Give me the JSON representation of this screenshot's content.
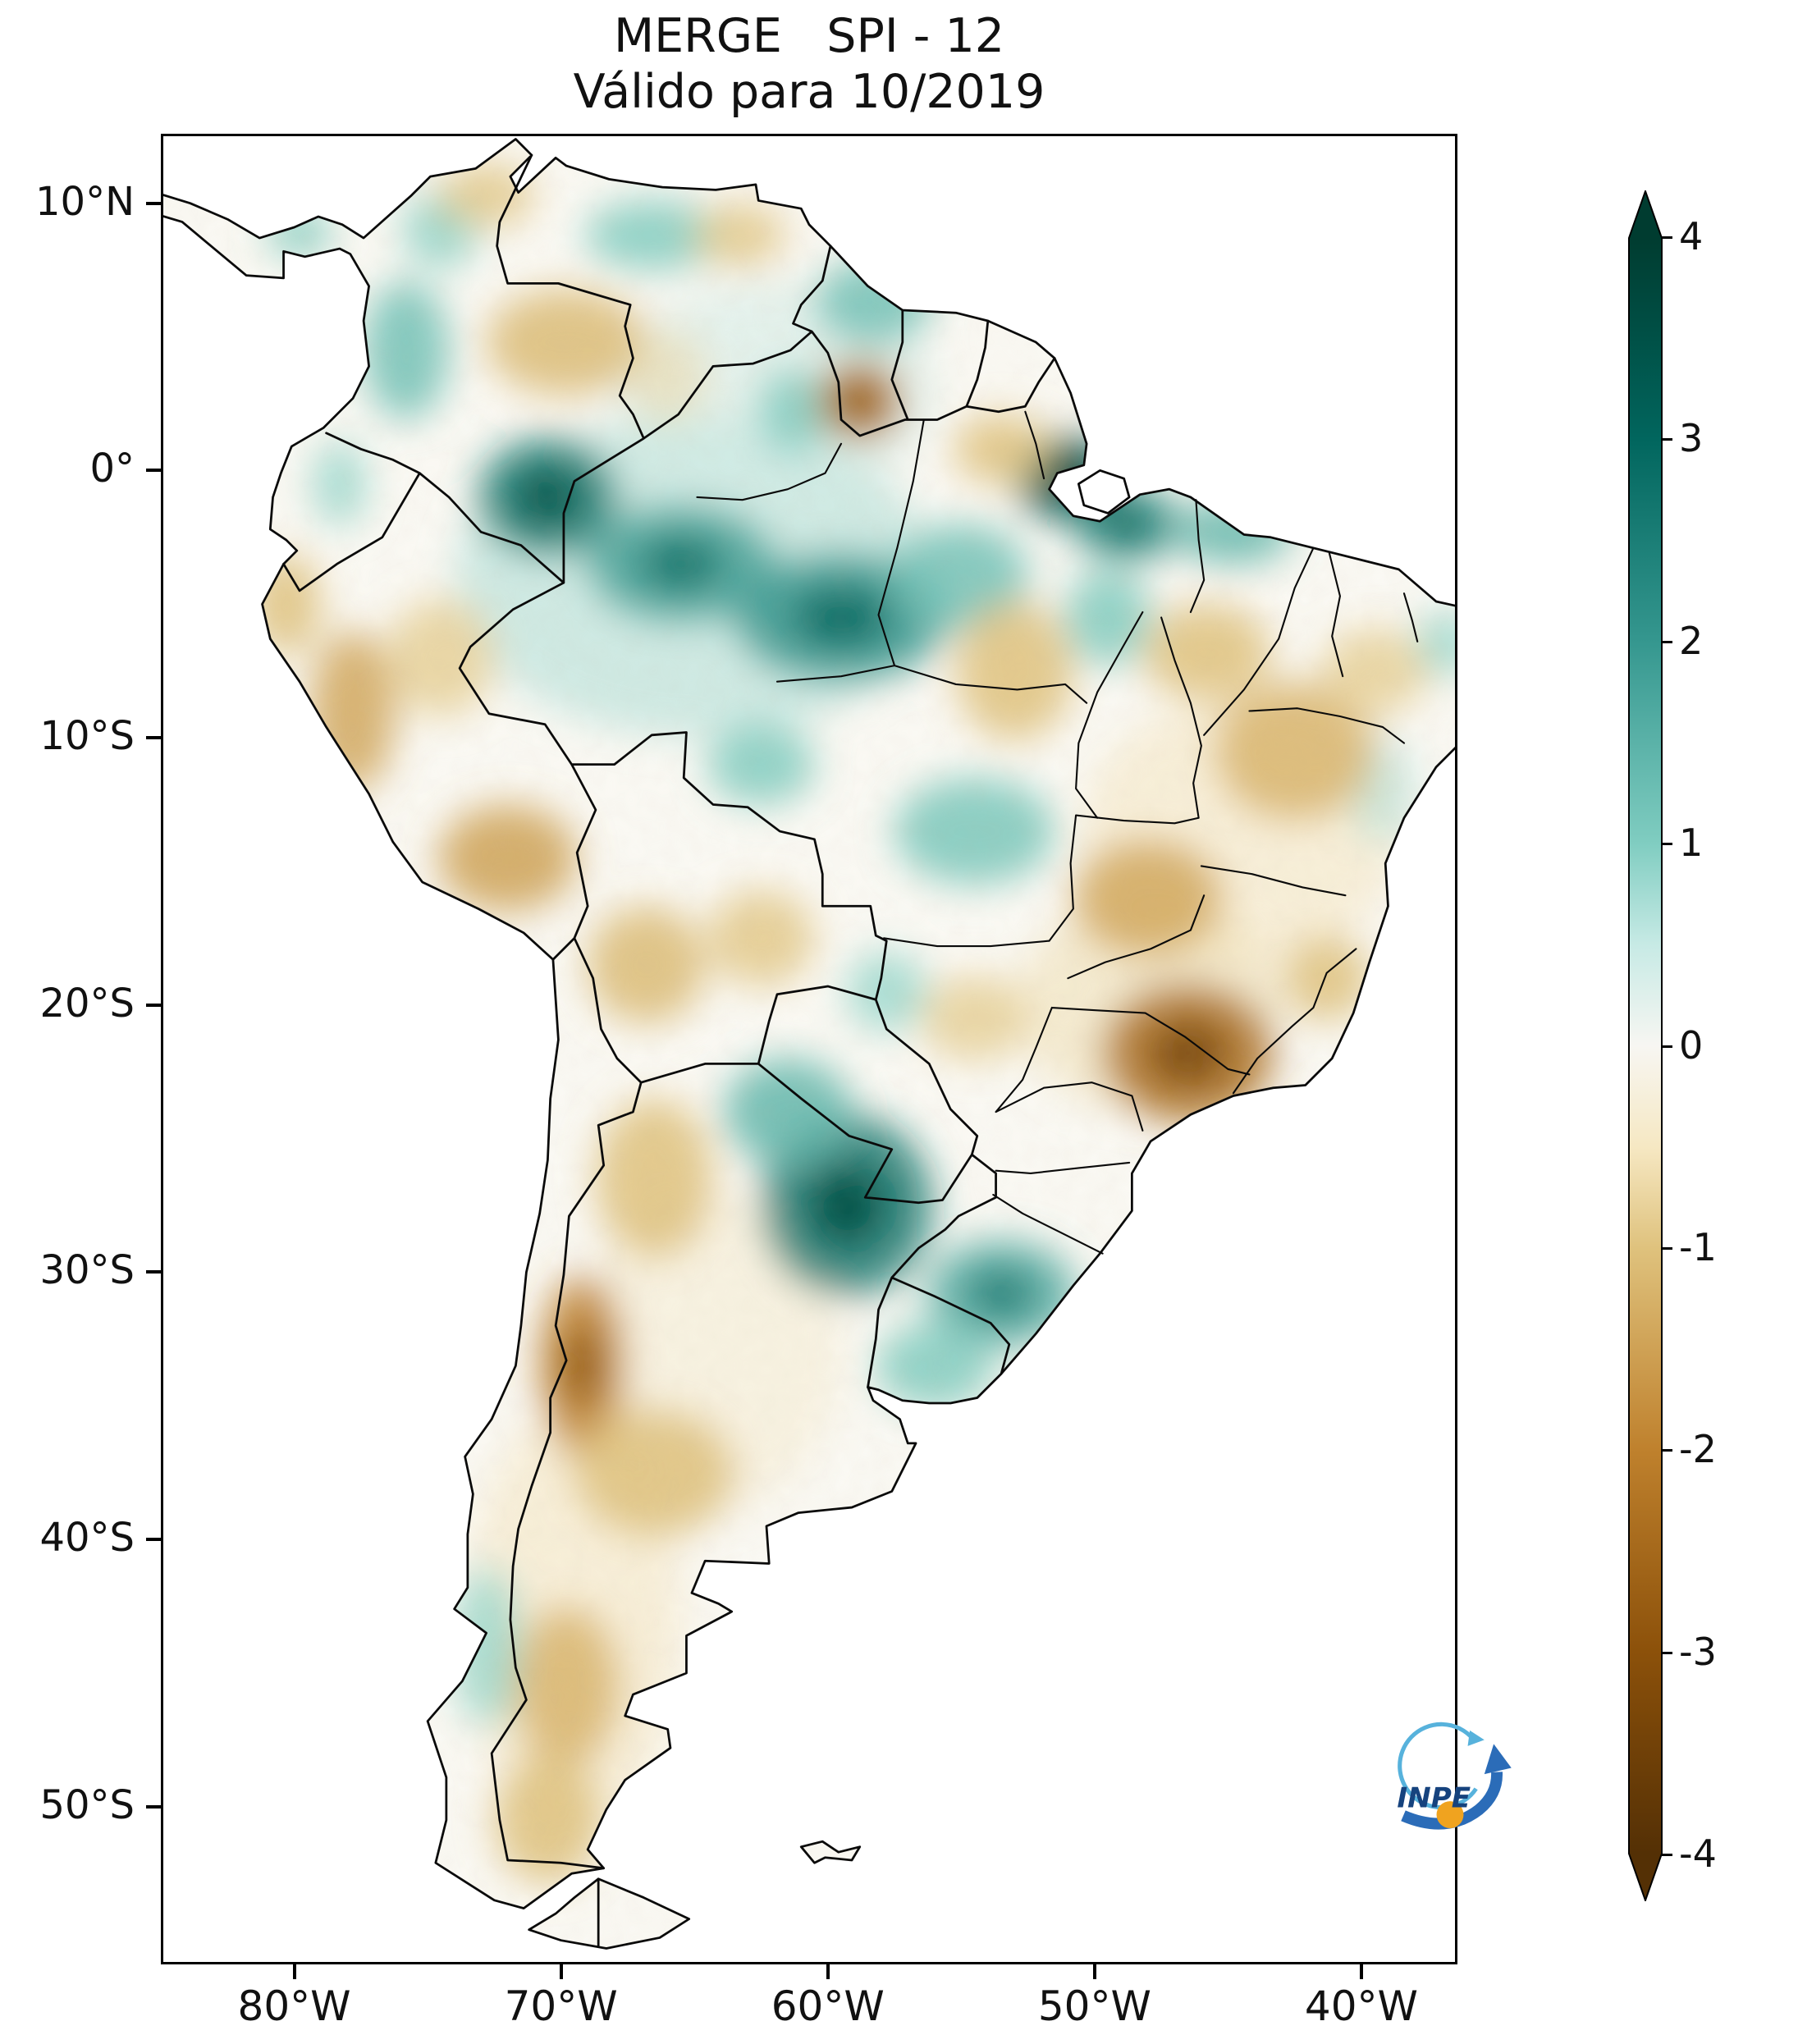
{
  "title": "MERGE   SPI - 12",
  "subtitle": "Válido para 10/2019",
  "logo": {
    "text": "INPE"
  },
  "axes": {
    "y_ticks": [
      {
        "label": "10°N",
        "lat": 10
      },
      {
        "label": "0°",
        "lat": 0
      },
      {
        "label": "10°S",
        "lat": -10
      },
      {
        "label": "20°S",
        "lat": -20
      },
      {
        "label": "30°S",
        "lat": -30
      },
      {
        "label": "40°S",
        "lat": -40
      },
      {
        "label": "50°S",
        "lat": -50
      }
    ],
    "x_ticks": [
      {
        "label": "80°W",
        "lon": -80
      },
      {
        "label": "70°W",
        "lon": -70
      },
      {
        "label": "60°W",
        "lon": -60
      },
      {
        "label": "50°W",
        "lon": -50
      },
      {
        "label": "40°W",
        "lon": -40
      }
    ]
  },
  "colorbar": {
    "extend": "both",
    "ticks": [
      {
        "label": "4",
        "value": 4
      },
      {
        "label": "3",
        "value": 3
      },
      {
        "label": "2",
        "value": 2
      },
      {
        "label": "1",
        "value": 1
      },
      {
        "label": "0",
        "value": 0
      },
      {
        "label": "-1",
        "value": -1
      },
      {
        "label": "-2",
        "value": -2
      },
      {
        "label": "-3",
        "value": -3
      },
      {
        "label": "-4",
        "value": -4
      }
    ],
    "stops": [
      {
        "value": 4,
        "color": "#003c30"
      },
      {
        "value": 3,
        "color": "#01665e"
      },
      {
        "value": 2,
        "color": "#35978f"
      },
      {
        "value": 1,
        "color": "#80cdc1"
      },
      {
        "value": 0.5,
        "color": "#c7eae5"
      },
      {
        "value": 0,
        "color": "#f7f6f2"
      },
      {
        "value": -0.5,
        "color": "#f6e8c3"
      },
      {
        "value": -1,
        "color": "#dfc27d"
      },
      {
        "value": -2,
        "color": "#bf812d"
      },
      {
        "value": -3,
        "color": "#8c510a"
      },
      {
        "value": -4,
        "color": "#543005"
      }
    ]
  },
  "chart_data": {
    "type": "heatmap",
    "title": "MERGE   SPI - 12",
    "subtitle": "Válido para 10/2019",
    "region": "South America",
    "lon_range": [
      -85,
      -36.4
    ],
    "lat_range": [
      -55.9,
      12.6
    ],
    "value_range": [
      -4,
      4
    ],
    "anomalies": [
      {
        "name": "amazon-basin-wash",
        "lon": -65,
        "lat": -4,
        "spi": 0.7,
        "rx": 9,
        "ry": 6
      },
      {
        "name": "north-wash",
        "lon": -62,
        "lat": 3,
        "spi": 0.4,
        "rx": 6,
        "ry": 4
      },
      {
        "name": "patagonia-wash",
        "lon": -69.5,
        "lat": -43,
        "spi": -0.5,
        "rx": 4,
        "ry": 8
      },
      {
        "name": "argentina-center-wash",
        "lon": -64.5,
        "lat": -33,
        "spi": -0.35,
        "rx": 5,
        "ry": 6
      },
      {
        "name": "brazil-interior-wash",
        "lon": -44.5,
        "lat": -13.5,
        "spi": -0.5,
        "rx": 6,
        "ry": 5
      },
      {
        "name": "se-brazil-wash",
        "lon": -48,
        "lat": -20,
        "spi": -0.6,
        "rx": 5,
        "ry": 4
      },
      {
        "name": "nw-amazon-wet",
        "lon": -70.5,
        "lat": -1.0,
        "spi": 2.6,
        "rx": 2.6,
        "ry": 2.2
      },
      {
        "name": "rio-negro-wet",
        "lon": -65.5,
        "lat": -3.5,
        "spi": 1.8,
        "rx": 3.5,
        "ry": 2.2
      },
      {
        "name": "central-amazon-wet",
        "lon": -59.5,
        "lat": -5.5,
        "spi": 2.0,
        "rx": 4.0,
        "ry": 2.4
      },
      {
        "name": "lower-amazon-wet",
        "lon": -55.0,
        "lat": -4.0,
        "spi": 1.2,
        "rx": 2.5,
        "ry": 2.0
      },
      {
        "name": "amapa-para-coast-wet",
        "lon": -51.0,
        "lat": -0.3,
        "spi": 3.2,
        "rx": 2.0,
        "ry": 1.6
      },
      {
        "name": "marajo-wet",
        "lon": -48.8,
        "lat": -2.0,
        "spi": 2.2,
        "rx": 2.0,
        "ry": 1.4
      },
      {
        "name": "guyana-coast-wet",
        "lon": -58.3,
        "lat": 6.3,
        "spi": 1.2,
        "rx": 2.2,
        "ry": 1.6
      },
      {
        "name": "venezuela-coast-wet",
        "lon": -66.5,
        "lat": 8.8,
        "spi": 1.0,
        "rx": 2.6,
        "ry": 1.3
      },
      {
        "name": "colombia-andes-wet",
        "lon": -75.8,
        "lat": 4.5,
        "spi": 1.2,
        "rx": 1.6,
        "ry": 2.6
      },
      {
        "name": "caribbean-colombia-wet",
        "lon": -74.5,
        "lat": 9.0,
        "spi": 0.9,
        "rx": 1.4,
        "ry": 1.4
      },
      {
        "name": "ecuador-andes-wet",
        "lon": -78.3,
        "lat": -0.5,
        "spi": 0.8,
        "rx": 1.0,
        "ry": 1.6
      },
      {
        "name": "roraima-wet",
        "lon": -61.3,
        "lat": 2.2,
        "spi": 1.0,
        "rx": 1.3,
        "ry": 1.6
      },
      {
        "name": "paraguay-ne-argentina-wet",
        "lon": -59.3,
        "lat": -27.5,
        "spi": 2.6,
        "rx": 3.2,
        "ry": 3.4
      },
      {
        "name": "chaco-wet",
        "lon": -61.5,
        "lat": -24.0,
        "spi": 1.4,
        "rx": 2.4,
        "ry": 2.0
      },
      {
        "name": "rio-grande-do-sul-wet",
        "lon": -53.5,
        "lat": -30.8,
        "spi": 1.6,
        "rx": 2.8,
        "ry": 2.0
      },
      {
        "name": "uruguay-wet",
        "lon": -56.0,
        "lat": -33.5,
        "spi": 1.0,
        "rx": 2.2,
        "ry": 1.6
      },
      {
        "name": "central-brazil-wet",
        "lon": -54.5,
        "lat": -13.5,
        "spi": 1.1,
        "rx": 3.0,
        "ry": 2.0
      },
      {
        "name": "rondonia-wet",
        "lon": -62.5,
        "lat": -11.0,
        "spi": 1.0,
        "rx": 2.0,
        "ry": 1.5
      },
      {
        "name": "maranhao-coast-wet",
        "lon": -44.8,
        "lat": -2.3,
        "spi": 1.4,
        "rx": 2.2,
        "ry": 1.2
      },
      {
        "name": "araguaia-wet",
        "lon": -49.5,
        "lat": -5.5,
        "spi": 1.0,
        "rx": 1.6,
        "ry": 1.8
      },
      {
        "name": "bahia-coast-wet",
        "lon": -39.2,
        "lat": -12.0,
        "spi": 0.7,
        "rx": 1.2,
        "ry": 2.0
      },
      {
        "name": "pantanal-wet",
        "lon": -57.8,
        "lat": -19.5,
        "spi": 0.8,
        "rx": 1.5,
        "ry": 1.5
      },
      {
        "name": "south-chile-wet",
        "lon": -72.8,
        "lat": -44.0,
        "spi": 0.8,
        "rx": 1.2,
        "ry": 3.0
      },
      {
        "name": "ne-tip-wet",
        "lon": -36.8,
        "lat": -6.5,
        "spi": 0.8,
        "rx": 1.2,
        "ry": 1.2
      },
      {
        "name": "panama-wet",
        "lon": -79.8,
        "lat": 8.9,
        "spi": 1.0,
        "rx": 1.2,
        "ry": 0.9
      },
      {
        "name": "sao-paulo-minas-dry",
        "lon": -46.5,
        "lat": -21.8,
        "spi": -2.4,
        "rx": 3.2,
        "ry": 2.6
      },
      {
        "name": "goias-dry",
        "lon": -48.0,
        "lat": -16.0,
        "spi": -1.4,
        "rx": 2.8,
        "ry": 2.2
      },
      {
        "name": "bahia-interior-dry",
        "lon": -42.5,
        "lat": -10.5,
        "spi": -1.2,
        "rx": 3.0,
        "ry": 2.6
      },
      {
        "name": "tocantins-maranhao-dry",
        "lon": -45.8,
        "lat": -6.8,
        "spi": -1.0,
        "rx": 2.4,
        "ry": 1.8
      },
      {
        "name": "xingu-dry",
        "lon": -53.0,
        "lat": -7.5,
        "spi": -1.0,
        "rx": 2.2,
        "ry": 2.6
      },
      {
        "name": "guyana-brazil-border-dry",
        "lon": -58.8,
        "lat": 2.6,
        "spi": -2.2,
        "rx": 1.6,
        "ry": 1.5
      },
      {
        "name": "west-amapa-dry",
        "lon": -53.5,
        "lat": 0.8,
        "spi": -1.0,
        "rx": 1.8,
        "ry": 1.3
      },
      {
        "name": "llanos-dry",
        "lon": -69.8,
        "lat": 4.8,
        "spi": -1.1,
        "rx": 3.0,
        "ry": 2.0
      },
      {
        "name": "guajira-dry",
        "lon": -72.8,
        "lat": 10.3,
        "spi": -0.9,
        "rx": 1.8,
        "ry": 1.2
      },
      {
        "name": "peru-andes-dry",
        "lon": -77.8,
        "lat": -9.0,
        "spi": -1.4,
        "rx": 1.6,
        "ry": 3.0
      },
      {
        "name": "south-peru-dry",
        "lon": -72.0,
        "lat": -14.5,
        "spi": -1.5,
        "rx": 2.6,
        "ry": 2.0
      },
      {
        "name": "altiplano-dry",
        "lon": -66.8,
        "lat": -18.5,
        "spi": -1.1,
        "rx": 2.2,
        "ry": 2.2
      },
      {
        "name": "santa-cruz-bolivia-dry",
        "lon": -62.5,
        "lat": -17.5,
        "spi": -0.9,
        "rx": 2.0,
        "ry": 1.8
      },
      {
        "name": "cuyo-andes-dry",
        "lon": -69.2,
        "lat": -33.5,
        "spi": -2.0,
        "rx": 1.6,
        "ry": 3.4
      },
      {
        "name": "nw-argentina-dry",
        "lon": -66.5,
        "lat": -26.5,
        "spi": -1.0,
        "rx": 2.2,
        "ry": 3.0
      },
      {
        "name": "la-pampa-dry",
        "lon": -66.5,
        "lat": -37.5,
        "spi": -1.0,
        "rx": 3.0,
        "ry": 2.4
      },
      {
        "name": "patagonia-dry",
        "lon": -69.8,
        "lat": -45.5,
        "spi": -1.2,
        "rx": 2.0,
        "ry": 3.0
      },
      {
        "name": "santa-cruz-argentina-dry",
        "lon": -70.5,
        "lat": -50.5,
        "spi": -1.0,
        "rx": 2.0,
        "ry": 2.4
      },
      {
        "name": "nw-peru-dry",
        "lon": -80.3,
        "lat": -5.0,
        "spi": -1.0,
        "rx": 1.3,
        "ry": 1.9
      },
      {
        "name": "ucayali-dry",
        "lon": -74.5,
        "lat": -7.0,
        "spi": -0.8,
        "rx": 2.0,
        "ry": 2.2
      },
      {
        "name": "mato-grosso-do-sul-dry",
        "lon": -54.5,
        "lat": -20.5,
        "spi": -0.8,
        "rx": 2.0,
        "ry": 1.6
      },
      {
        "name": "espirito-santo-dry",
        "lon": -41.3,
        "lat": -19.0,
        "spi": -1.0,
        "rx": 1.6,
        "ry": 1.6
      },
      {
        "name": "ne-venezuela-dry",
        "lon": -63.3,
        "lat": 8.8,
        "spi": -0.9,
        "rx": 1.7,
        "ry": 1.2
      },
      {
        "name": "venezuela-amazonas-dry",
        "lon": -66.0,
        "lat": 3.5,
        "spi": -0.7,
        "rx": 1.5,
        "ry": 1.8
      },
      {
        "name": "caatinga-dry",
        "lon": -39.5,
        "lat": -7.5,
        "spi": -0.8,
        "rx": 2.0,
        "ry": 1.6
      }
    ]
  }
}
